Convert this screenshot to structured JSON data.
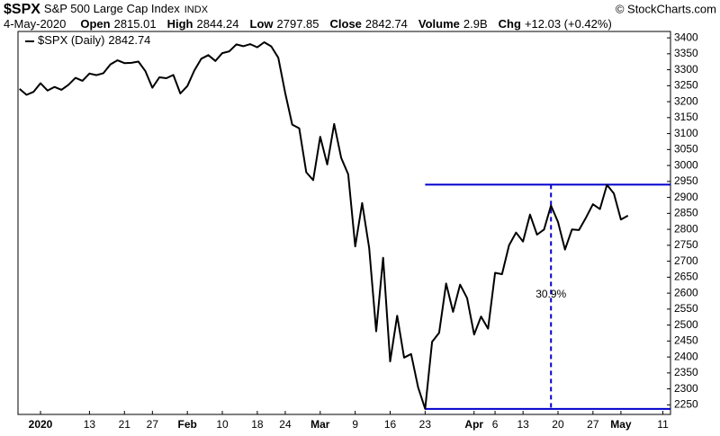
{
  "header": {
    "symbol": "$SPX",
    "name": "S&P 500 Large Cap Index",
    "exchange": "INDX",
    "copyright": "© StockCharts.com",
    "date": "4-May-2020",
    "stats": [
      {
        "label": "Open",
        "value": "2815.01"
      },
      {
        "label": "High",
        "value": "2844.24"
      },
      {
        "label": "Low",
        "value": "2797.85"
      },
      {
        "label": "Close",
        "value": "2842.74"
      },
      {
        "label": "Volume",
        "value": "2.9B"
      },
      {
        "label": "Chg",
        "value": "+12.03 (+0.42%)"
      }
    ]
  },
  "chart_data": {
    "type": "line",
    "categories": [
      null,
      null,
      null,
      "2020",
      null,
      null,
      null,
      null,
      null,
      null,
      "13",
      null,
      null,
      null,
      null,
      "21",
      null,
      null,
      null,
      "27",
      null,
      null,
      null,
      null,
      "Feb",
      null,
      null,
      null,
      null,
      "10",
      null,
      null,
      null,
      null,
      "18",
      null,
      null,
      null,
      "24",
      null,
      null,
      null,
      null,
      "Mar",
      null,
      null,
      null,
      null,
      "9",
      null,
      null,
      null,
      null,
      "16",
      null,
      null,
      null,
      null,
      "23",
      null,
      null,
      null,
      null,
      null,
      null,
      "Apr",
      null,
      null,
      "6",
      null,
      null,
      null,
      "13",
      null,
      null,
      null,
      null,
      "20",
      null,
      null,
      null,
      null,
      "27",
      null,
      null,
      null,
      "May",
      null,
      null,
      null,
      null,
      null,
      "11",
      null
    ],
    "series": [
      {
        "name": "$SPX (Daily)",
        "color": "#000000",
        "values": [
          3240.02,
          3221.29,
          3230.78,
          3257.85,
          3234.85,
          3246.28,
          3237.18,
          3253.05,
          3274.7,
          3265.35,
          3288.13,
          3283.15,
          3289.29,
          3316.81,
          3329.62,
          3320.79,
          3321.75,
          3325.54,
          3295.47,
          3243.63,
          3276.24,
          3273.4,
          3283.66,
          3225.52,
          3248.92,
          3297.59,
          3334.69,
          3345.78,
          3327.71,
          3352.09,
          3357.75,
          3379.45,
          3373.94,
          3380.16,
          3370.29,
          3386.15,
          3373.23,
          3337.75,
          3225.89,
          3128.21,
          3116.39,
          2978.76,
          2954.22,
          3090.23,
          3003.37,
          3130.12,
          3023.94,
          2972.37,
          2746.56,
          2882.23,
          2741.38,
          2480.64,
          2711.02,
          2386.13,
          2529.19,
          2398.1,
          2409.39,
          2304.92,
          2237.4,
          2447.33,
          2475.56,
          2630.07,
          2541.47,
          2626.65,
          2584.59,
          2470.5,
          2526.9,
          2488.65,
          2663.68,
          2659.41,
          2749.98,
          2789.82,
          2761.63,
          2846.06,
          2783.36,
          2799.55,
          2874.56,
          2823.16,
          2736.56,
          2799.31,
          2797.8,
          2836.74,
          2878.48,
          2863.39,
          2939.51,
          2912.43,
          2830.71,
          2842.74,
          null,
          null,
          null,
          null,
          null,
          null
        ]
      }
    ],
    "legend_value": 2842.74,
    "ylim": [
      2220,
      3420
    ],
    "yticks": [
      2250,
      2300,
      2350,
      2400,
      2450,
      2500,
      2550,
      2600,
      2650,
      2700,
      2750,
      2800,
      2850,
      2900,
      2950,
      3000,
      3050,
      3100,
      3150,
      3200,
      3250,
      3300,
      3350,
      3400
    ],
    "reference_lines": [
      {
        "value": 2940,
        "color": "#0000cc"
      },
      {
        "value": 2237.4,
        "color": "#0000cc"
      }
    ],
    "annotation": "30.9%"
  }
}
